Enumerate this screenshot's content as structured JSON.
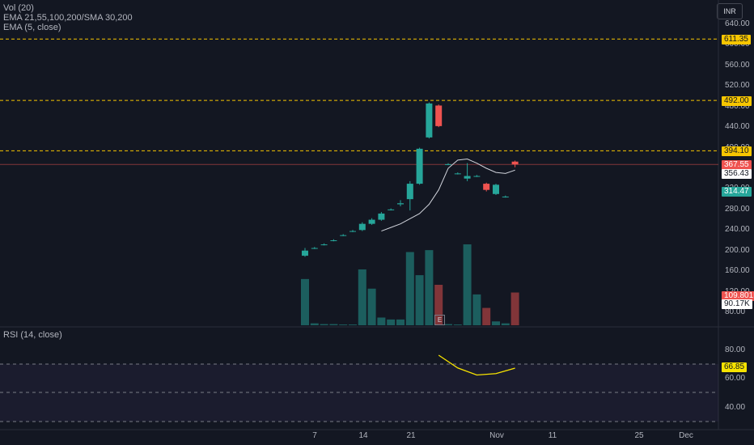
{
  "currency": "INR",
  "indicators": {
    "vol": "Vol (20)",
    "ema_multi": "EMA 21,55,100,200/SMA 30,200",
    "ema5": "EMA (5, close)",
    "rsi": "RSI (14, close)"
  },
  "price_axis": [
    "640.00",
    "600.00",
    "560.00",
    "520.00",
    "480.00",
    "440.00",
    "400.00",
    "360.00",
    "320.00",
    "280.00",
    "240.00",
    "200.00",
    "160.00",
    "120.00",
    "80.00"
  ],
  "price_tags": {
    "level1": "611.35",
    "level2": "492.00",
    "level3": "394.10",
    "last": "367.55",
    "ema": "356.43",
    "green": "314.47",
    "vol1": "109.801K",
    "vol2": "90.17K"
  },
  "rsi_axis": [
    "80.00",
    "60.00",
    "40.00"
  ],
  "rsi_tag": "66.85",
  "x_axis": [
    "7",
    "14",
    "21",
    "Nov",
    "11",
    "25",
    "Dec"
  ],
  "earnings_marker": "E",
  "colors": {
    "up": "#26a69a",
    "down": "#ef5350",
    "bg": "#131722",
    "level": "#f7c600",
    "rsi": "#f7e300"
  },
  "chart_data": {
    "type": "candlestick",
    "candles": [
      {
        "date": "7",
        "o": 190,
        "h": 205,
        "l": 188,
        "c": 200
      },
      {
        "date": "",
        "o": 205,
        "h": 207,
        "l": 203,
        "c": 205
      },
      {
        "date": "",
        "o": 212,
        "h": 214,
        "l": 210,
        "c": 212
      },
      {
        "date": "",
        "o": 220,
        "h": 222,
        "l": 218,
        "c": 220
      },
      {
        "date": "",
        "o": 230,
        "h": 232,
        "l": 228,
        "c": 230
      },
      {
        "date": "",
        "o": 238,
        "h": 240,
        "l": 236,
        "c": 238
      },
      {
        "date": "14",
        "o": 240,
        "h": 255,
        "l": 238,
        "c": 252
      },
      {
        "date": "",
        "o": 252,
        "h": 263,
        "l": 250,
        "c": 260
      },
      {
        "date": "",
        "o": 260,
        "h": 275,
        "l": 258,
        "c": 272
      },
      {
        "date": "",
        "o": 280,
        "h": 282,
        "l": 278,
        "c": 280
      },
      {
        "date": "",
        "o": 290,
        "h": 298,
        "l": 286,
        "c": 292
      },
      {
        "date": "",
        "o": 300,
        "h": 335,
        "l": 278,
        "c": 330
      },
      {
        "date": "21",
        "o": 330,
        "h": 400,
        "l": 328,
        "c": 398
      },
      {
        "date": "",
        "o": 420,
        "h": 488,
        "l": 418,
        "c": 486
      },
      {
        "date": "",
        "o": 482,
        "h": 484,
        "l": 440,
        "c": 442
      },
      {
        "date": "",
        "o": 368,
        "h": 370,
        "l": 366,
        "c": 368
      },
      {
        "date": "",
        "o": 350,
        "h": 352,
        "l": 348,
        "c": 350
      },
      {
        "date": "",
        "o": 340,
        "h": 370,
        "l": 335,
        "c": 345
      },
      {
        "date": "",
        "o": 345,
        "h": 347,
        "l": 343,
        "c": 345
      },
      {
        "date": "",
        "o": 330,
        "h": 332,
        "l": 315,
        "c": 318
      },
      {
        "date": "",
        "o": 310,
        "h": 330,
        "l": 308,
        "c": 328
      },
      {
        "date": "",
        "o": 305,
        "h": 307,
        "l": 303,
        "c": 305
      },
      {
        "date": "Nov",
        "o": 373,
        "h": 375,
        "l": 362,
        "c": 367.55
      }
    ],
    "ema5": [
      238,
      245,
      252,
      262,
      272,
      290,
      318,
      360,
      376,
      378,
      370,
      360,
      352,
      350,
      356.43
    ],
    "volume": [
      120,
      5,
      3,
      3,
      2,
      2,
      145,
      95,
      20,
      15,
      15,
      190,
      130,
      195,
      105,
      3,
      2,
      210,
      80,
      45,
      10,
      5,
      85
    ],
    "rsi": [
      76,
      67,
      62,
      63,
      66.85
    ],
    "levels": [
      611.35,
      492.0,
      394.1
    ],
    "price_range": [
      60,
      660
    ],
    "rsi_range": [
      30,
      90
    ]
  }
}
